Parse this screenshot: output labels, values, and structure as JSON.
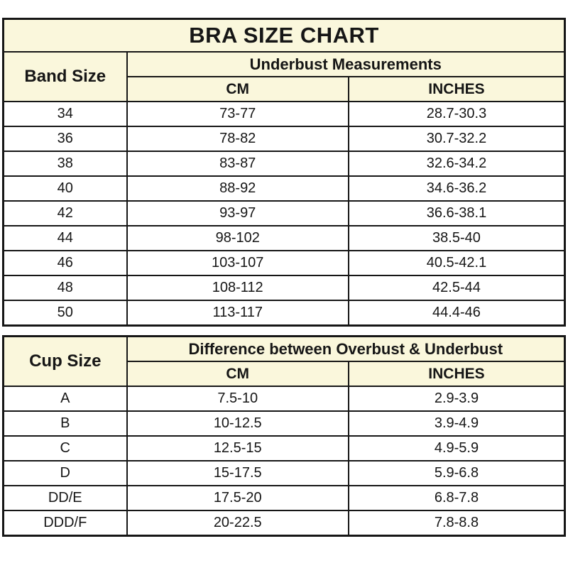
{
  "colors": {
    "header_bg": "#faf7dc",
    "row_bg": "#ffffff",
    "border": "#161616",
    "text": "#161616"
  },
  "band_table": {
    "title": "BRA SIZE CHART",
    "col1_header": "Band Size",
    "group_header": "Underbust Measurements",
    "sub_headers": [
      "CM",
      "INCHES"
    ],
    "rows": [
      [
        "34",
        "73-77",
        "28.7-30.3"
      ],
      [
        "36",
        "78-82",
        "30.7-32.2"
      ],
      [
        "38",
        "83-87",
        "32.6-34.2"
      ],
      [
        "40",
        "88-92",
        "34.6-36.2"
      ],
      [
        "42",
        "93-97",
        "36.6-38.1"
      ],
      [
        "44",
        "98-102",
        "38.5-40"
      ],
      [
        "46",
        "103-107",
        "40.5-42.1"
      ],
      [
        "48",
        "108-112",
        "42.5-44"
      ],
      [
        "50",
        "113-117",
        "44.4-46"
      ]
    ]
  },
  "cup_table": {
    "col1_header": "Cup Size",
    "group_header": "Difference between Overbust & Underbust",
    "sub_headers": [
      "CM",
      "INCHES"
    ],
    "rows": [
      [
        "A",
        "7.5-10",
        "2.9-3.9"
      ],
      [
        "B",
        "10-12.5",
        "3.9-4.9"
      ],
      [
        "C",
        "12.5-15",
        "4.9-5.9"
      ],
      [
        "D",
        "15-17.5",
        "5.9-6.8"
      ],
      [
        "DD/E",
        "17.5-20",
        "6.8-7.8"
      ],
      [
        "DDD/F",
        "20-22.5",
        "7.8-8.8"
      ]
    ]
  },
  "chart_data": [
    {
      "type": "table",
      "title": "BRA SIZE CHART",
      "columns": [
        "Band Size",
        "Underbust Measurements CM",
        "Underbust Measurements INCHES"
      ],
      "rows": [
        [
          "34",
          "73-77",
          "28.7-30.3"
        ],
        [
          "36",
          "78-82",
          "30.7-32.2"
        ],
        [
          "38",
          "83-87",
          "32.6-34.2"
        ],
        [
          "40",
          "88-92",
          "34.6-36.2"
        ],
        [
          "42",
          "93-97",
          "36.6-38.1"
        ],
        [
          "44",
          "98-102",
          "38.5-40"
        ],
        [
          "46",
          "103-107",
          "40.5-42.1"
        ],
        [
          "48",
          "108-112",
          "42.5-44"
        ],
        [
          "50",
          "113-117",
          "44.4-46"
        ]
      ]
    },
    {
      "type": "table",
      "title": "Cup Size",
      "columns": [
        "Cup Size",
        "Difference between Overbust & Underbust CM",
        "Difference between Overbust & Underbust INCHES"
      ],
      "rows": [
        [
          "A",
          "7.5-10",
          "2.9-3.9"
        ],
        [
          "B",
          "10-12.5",
          "3.9-4.9"
        ],
        [
          "C",
          "12.5-15",
          "4.9-5.9"
        ],
        [
          "D",
          "15-17.5",
          "5.9-6.8"
        ],
        [
          "DD/E",
          "17.5-20",
          "6.8-7.8"
        ],
        [
          "DDD/F",
          "20-22.5",
          "7.8-8.8"
        ]
      ]
    }
  ]
}
